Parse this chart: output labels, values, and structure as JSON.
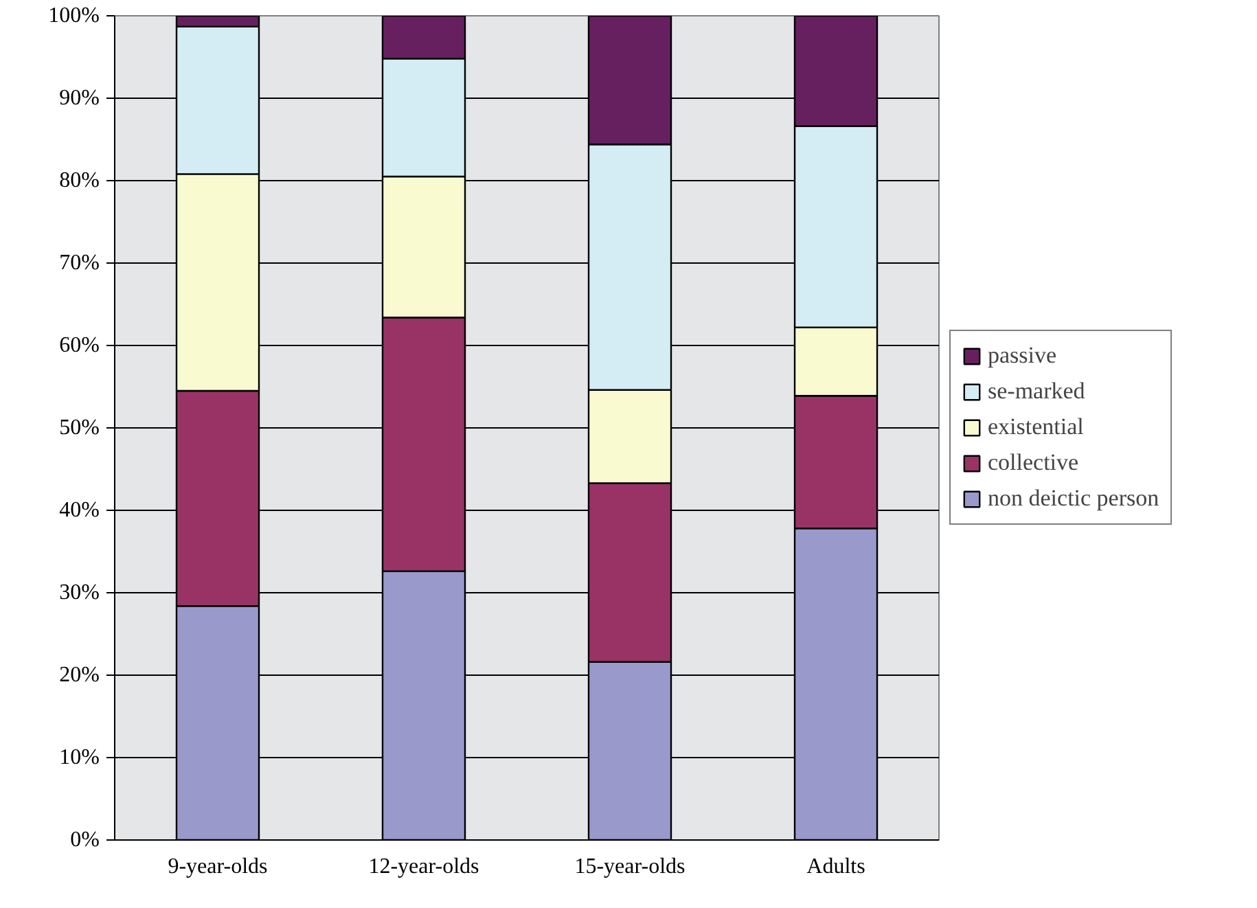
{
  "chart_data": {
    "type": "bar",
    "stacked": true,
    "categories": [
      "9-year-olds",
      "12-year-olds",
      "15-year-olds",
      "Adults"
    ],
    "series": [
      {
        "name": "non deictic person",
        "color": "#9999cc",
        "values": [
          28.4,
          32.6,
          21.6,
          37.8
        ]
      },
      {
        "name": "collective",
        "color": "#993366",
        "values": [
          26.1,
          30.8,
          21.7,
          16.1
        ]
      },
      {
        "name": "existential",
        "color": "#fafad0",
        "values": [
          26.3,
          17.1,
          11.3,
          8.3
        ]
      },
      {
        "name": "se-marked",
        "color": "#d4ecf3",
        "values": [
          17.9,
          14.3,
          29.8,
          24.4
        ]
      },
      {
        "name": "passive",
        "color": "#662060",
        "values": [
          1.3,
          5.2,
          15.6,
          13.4
        ]
      }
    ],
    "ylim": [
      0,
      100
    ],
    "yticks": [
      {
        "value": 0,
        "label": "0%"
      },
      {
        "value": 10,
        "label": "10%"
      },
      {
        "value": 20,
        "label": "20%"
      },
      {
        "value": 30,
        "label": "30%"
      },
      {
        "value": 40,
        "label": "40%"
      },
      {
        "value": 50,
        "label": "50%"
      },
      {
        "value": 60,
        "label": "60%"
      },
      {
        "value": 70,
        "label": "70%"
      },
      {
        "value": 80,
        "label": "80%"
      },
      {
        "value": 90,
        "label": "90%"
      },
      {
        "value": 100,
        "label": "100%"
      }
    ],
    "grid": "y",
    "legend": "right"
  }
}
